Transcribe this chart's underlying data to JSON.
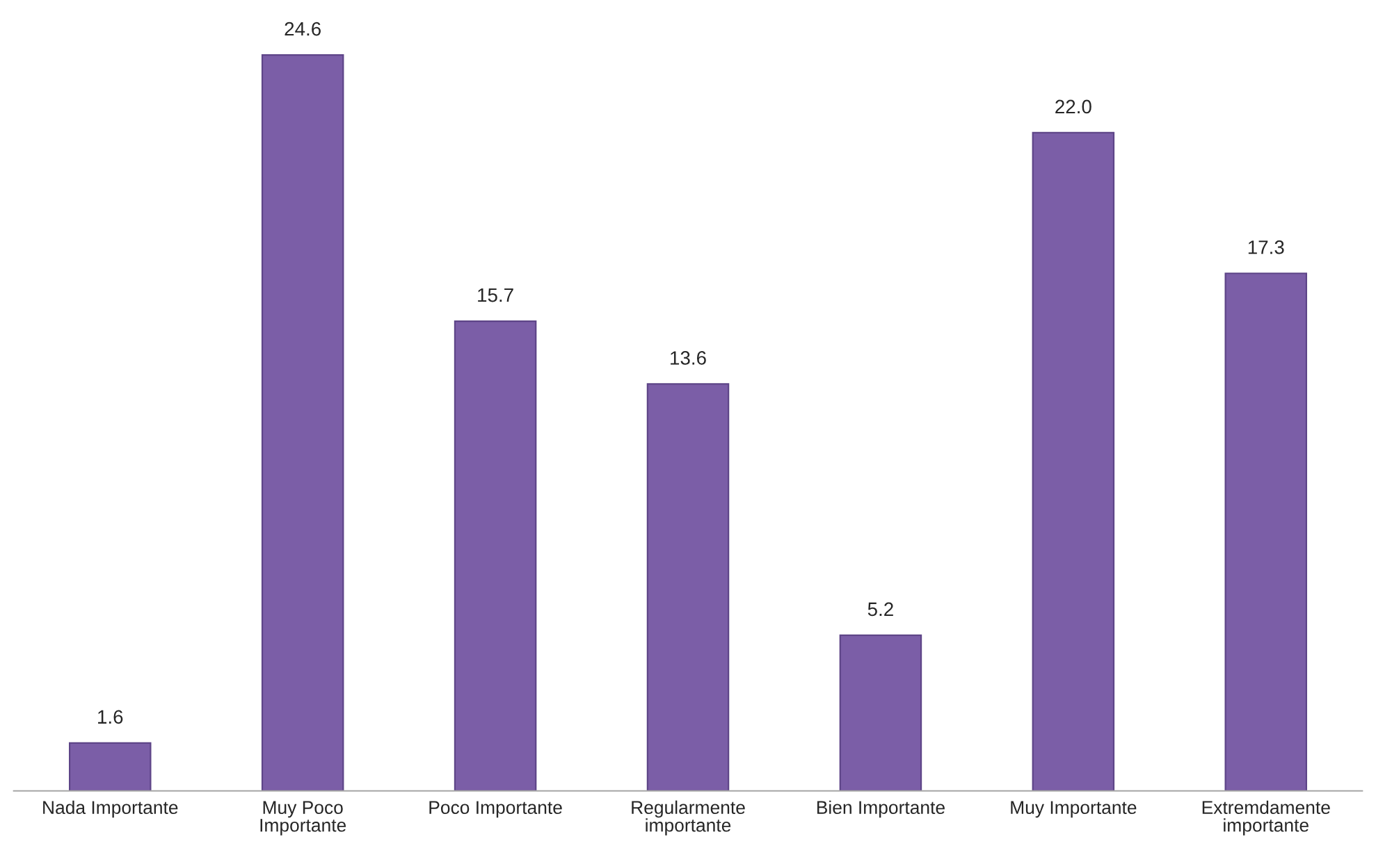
{
  "chart_data": {
    "type": "bar",
    "categories": [
      "Nada Importante",
      "Muy Poco\nImportante",
      "Poco Importante",
      "Regularmente\nimportante",
      "Bien Importante",
      "Muy Importante",
      "Extremdamente\nimportante"
    ],
    "values": [
      1.6,
      24.6,
      15.7,
      13.6,
      5.2,
      22.0,
      17.3
    ],
    "value_labels": [
      "1.6",
      "24.6",
      "15.7",
      "13.6",
      "5.2",
      "22.0",
      "17.3"
    ],
    "color": "#7b5ea7",
    "grid": false,
    "legend": false
  }
}
